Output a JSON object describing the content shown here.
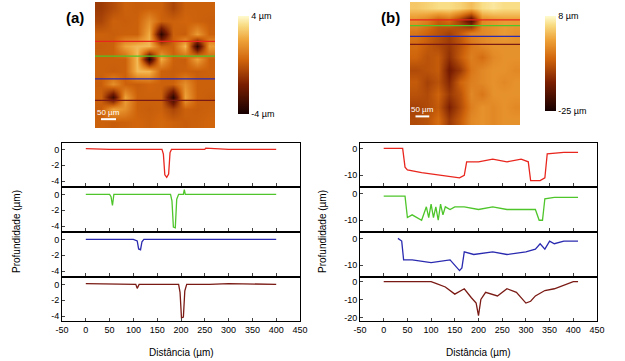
{
  "chart_data": [
    {
      "label": "(a)",
      "image": {
        "type": "heatmap",
        "tick_labels": false,
        "xlim": [
          0,
          400
        ],
        "ylim": [
          0,
          400
        ],
        "zlim": [
          -4,
          4
        ],
        "zticks": [
          {
            "value": 4,
            "label": "4 µm"
          },
          {
            "value": -4,
            "label": "-4 µm"
          }
        ],
        "scale_bar": {
          "label": "50 µm",
          "length": 50
        },
        "z": [
          [
            0.3,
            0.2,
            0.3,
            0.4,
            0.3,
            0.5,
            0.3,
            0.2,
            0.3,
            0.4
          ],
          [
            0.2,
            2.0,
            1.5,
            0.3,
            0.2,
            0.3,
            -0.5,
            0.3,
            0.2,
            0.3
          ],
          [
            0.3,
            -3,
            2.0,
            0.3,
            0.3,
            0.3,
            -3.5,
            2.0,
            0.3,
            0.2
          ],
          [
            0.2,
            1.5,
            0.3,
            0.2,
            0.4,
            0.3,
            0.3,
            1.5,
            0.3,
            0.3
          ],
          [
            0.3,
            0.2,
            0.3,
            2.5,
            2.5,
            0.3,
            0.2,
            0.3,
            0.2,
            0.3
          ],
          [
            0.3,
            0.3,
            0.3,
            2.5,
            -3.8,
            2.2,
            0.3,
            0.2,
            2.0,
            0.3
          ],
          [
            0.2,
            0.3,
            2.0,
            2.5,
            2.5,
            0.3,
            0.3,
            2.5,
            -3.5,
            1.8
          ],
          [
            0.3,
            0.2,
            0.3,
            0.3,
            2.2,
            -3.5,
            0.3,
            0.2,
            1.8,
            0.3
          ],
          [
            -0.5,
            0.3,
            0.2,
            0.3,
            1.5,
            0.3,
            0.3,
            0.4,
            0.3,
            0.2
          ],
          [
            -0.8,
            -0.3,
            0.3,
            0.2,
            0.3,
            0.3,
            -0.5,
            0.3,
            0.3,
            0.3
          ]
        ]
      },
      "profiles": {
        "type": "line",
        "xlabel": "Distância (µm)",
        "ylabel": "Profundidade (µm)",
        "xlim": [
          -50,
          450
        ],
        "xticks": [
          -50,
          0,
          50,
          100,
          150,
          200,
          250,
          300,
          350,
          400,
          450
        ],
        "series": [
          {
            "color": "#e8261e",
            "image_y": 275,
            "ylim": [
              -4.6,
              0.8
            ],
            "yticks": [
              -4,
              -2,
              0
            ],
            "x": [
              0,
              50,
              100,
              150,
              160,
              163,
              166,
              170,
              174,
              177,
              180,
              220,
              250,
              252,
              300,
              350,
              400
            ],
            "values": [
              0.1,
              0,
              0,
              0,
              0,
              -0.6,
              -3.2,
              -3.5,
              -3.1,
              -0.4,
              0,
              0,
              0,
              0.15,
              0,
              0,
              0
            ]
          },
          {
            "color": "#4ec52a",
            "image_y": 228,
            "ylim": [
              -4.6,
              0.8
            ],
            "yticks": [
              -4,
              -2,
              0
            ],
            "x": [
              0,
              50,
              53,
              56,
              59,
              100,
              150,
              178,
              181,
              184,
              188,
              191,
              195,
              205,
              207,
              209,
              250,
              300,
              400
            ],
            "values": [
              0,
              0,
              -0.3,
              -1.4,
              0,
              0,
              0,
              0,
              -0.8,
              -4.1,
              -4.2,
              -0.6,
              0,
              0,
              0.6,
              0,
              0,
              0,
              0
            ]
          },
          {
            "color": "#2a2ab0",
            "image_y": 156,
            "ylim": [
              -4.6,
              0.8
            ],
            "yticks": [
              -4,
              -2,
              0
            ],
            "x": [
              0,
              100,
              108,
              111,
              115,
              118,
              122,
              200,
              300,
              400
            ],
            "values": [
              0,
              0,
              -0.2,
              -1.2,
              -1.3,
              -0.3,
              0,
              0,
              0,
              0
            ]
          },
          {
            "color": "#7a1a14",
            "image_y": 88,
            "ylim": [
              -4.6,
              0.8
            ],
            "yticks": [
              -4,
              -2,
              0
            ],
            "x": [
              0,
              100,
              105,
              108,
              112,
              150,
              195,
              198,
              201,
              205,
              208,
              212,
              260,
              300,
              400
            ],
            "values": [
              0.1,
              0,
              0,
              -0.5,
              0,
              0,
              0,
              -1,
              -4.2,
              -4.1,
              -0.8,
              0,
              0,
              0.1,
              0
            ]
          }
        ]
      }
    },
    {
      "label": "(b)",
      "image": {
        "type": "heatmap",
        "tick_labels": false,
        "xlim": [
          0,
          400
        ],
        "ylim": [
          0,
          400
        ],
        "zlim": [
          -25,
          8
        ],
        "zticks": [
          {
            "value": 8,
            "label": "8 µm"
          },
          {
            "value": -25,
            "label": "-25 µm"
          }
        ],
        "scale_bar": {
          "label": "50 µm",
          "length": 50
        },
        "z": [
          [
            -10,
            -9,
            -6,
            -12,
            -8,
            -3,
            -2,
            -3,
            -2,
            -2
          ],
          [
            -11,
            -10,
            -8,
            -15,
            -10,
            -4,
            -2,
            -3,
            -2,
            -3
          ],
          [
            -9,
            -10,
            -7,
            -12,
            -9,
            -3,
            -5,
            -2,
            -2,
            -2
          ],
          [
            -8,
            -11,
            -9,
            -14,
            -7,
            -4,
            -3,
            -2,
            -3,
            -2
          ],
          [
            -10,
            -9,
            -8,
            -16,
            -12,
            -5,
            -3,
            -2,
            -2,
            -3
          ],
          [
            -7,
            -9,
            -8,
            -13,
            -8,
            -4,
            -6,
            -3,
            -2,
            -2
          ],
          [
            -6,
            -8,
            -10,
            -12,
            -9,
            -5,
            -3,
            -2,
            -2,
            -2
          ],
          [
            -5,
            -7,
            -9,
            -11,
            -8,
            -4,
            -3,
            -2,
            -1,
            -2
          ],
          [
            -2,
            -4,
            -8,
            -6,
            -12,
            -20,
            -3,
            -2,
            -1,
            -1
          ],
          [
            3,
            4,
            5,
            5,
            4,
            2,
            5,
            6,
            5,
            5
          ]
        ]
      },
      "profiles": {
        "type": "line",
        "xlabel": "Distância (µm)",
        "ylabel": "Profundidade (µm)",
        "xlim": [
          -50,
          450
        ],
        "xticks": [
          -50,
          0,
          50,
          100,
          150,
          200,
          250,
          300,
          350,
          400,
          450
        ],
        "series": [
          {
            "color": "#e8261e",
            "image_y": 342,
            "ylim": [
              -14,
              2
            ],
            "yticks": [
              -10,
              0
            ],
            "x": [
              0,
              40,
              45,
              50,
              80,
              100,
              130,
              160,
              170,
              175,
              200,
              230,
              260,
              290,
              305,
              310,
              330,
              340,
              345,
              380,
              410
            ],
            "values": [
              0,
              0,
              -7,
              -8,
              -9,
              -9.5,
              -10,
              -11,
              -10,
              -5,
              -5,
              -4,
              -5,
              -4,
              -5,
              -12,
              -12,
              -11,
              -2,
              -1.5,
              -1.5
            ]
          },
          {
            "color": "#4ec52a",
            "image_y": 323,
            "ylim": [
              -14,
              2
            ],
            "yticks": [
              -10,
              0
            ],
            "x": [
              0,
              45,
              50,
              60,
              80,
              90,
              95,
              100,
              105,
              110,
              115,
              120,
              125,
              130,
              140,
              150,
              170,
              200,
              230,
              260,
              300,
              320,
              328,
              335,
              340,
              360,
              410
            ],
            "values": [
              -1,
              -1,
              -9,
              -8,
              -10,
              -5,
              -9,
              -4,
              -9,
              -5,
              -10,
              -4,
              -8,
              -5,
              -6,
              -5,
              -5,
              -6,
              -5,
              -6,
              -6,
              -6,
              -10,
              -10,
              -2,
              -1.5,
              -1.5
            ]
          },
          {
            "color": "#2a2ab0",
            "image_y": 288,
            "ylim": [
              -14,
              2
            ],
            "yticks": [
              -10,
              0
            ],
            "x": [
              30,
              38,
              42,
              60,
              100,
              140,
              160,
              165,
              170,
              190,
              230,
              260,
              300,
              320,
              330,
              340,
              350,
              360,
              380,
              410
            ],
            "values": [
              0,
              -1,
              -8,
              -8,
              -9,
              -8,
              -12,
              -11,
              -5,
              -6,
              -5,
              -6,
              -5,
              -4,
              -2,
              -4,
              -1,
              -2,
              -1,
              -1
            ]
          },
          {
            "color": "#7a1a14",
            "image_y": 262,
            "ylim": [
              -22,
              2
            ],
            "yticks": [
              -20,
              -10,
              0
            ],
            "x": [
              0,
              100,
              110,
              130,
              150,
              170,
              185,
              195,
              200,
              205,
              215,
              240,
              260,
              280,
              300,
              310,
              320,
              340,
              360,
              380,
              400,
              410
            ],
            "values": [
              0,
              0,
              -1,
              -3,
              -7,
              -4,
              -9,
              -12,
              -19,
              -10,
              -6,
              -8,
              -4,
              -6,
              -12,
              -11,
              -8,
              -5,
              -4,
              -2,
              0,
              0
            ]
          }
        ]
      }
    }
  ]
}
